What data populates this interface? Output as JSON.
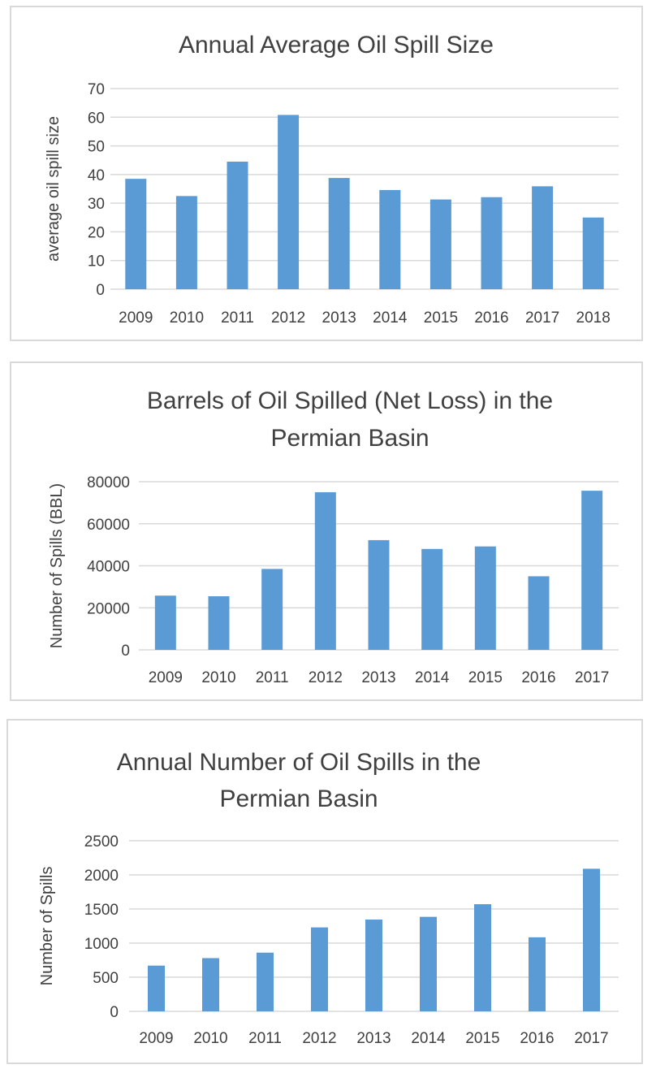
{
  "chart_data": [
    {
      "type": "bar",
      "title": "Annual Average Oil Spill Size",
      "title_lines": [
        "Annual Average Oil Spill Size"
      ],
      "xlabel": "",
      "ylabel": "average oil spill size",
      "categories": [
        "2009",
        "2010",
        "2011",
        "2012",
        "2013",
        "2014",
        "2015",
        "2016",
        "2017",
        "2018"
      ],
      "values": [
        38.5,
        32.5,
        44.5,
        60.8,
        38.8,
        34.6,
        31.3,
        32.1,
        35.9,
        25.0
      ],
      "ylim": [
        0,
        70
      ],
      "yticks": [
        "0",
        "10",
        "20",
        "30",
        "40",
        "50",
        "60",
        "70"
      ],
      "grid": true,
      "legend": "none",
      "bar_color": "#5b9bd5"
    },
    {
      "type": "bar",
      "title": "Barrels of Oil Spilled (Net Loss) in the Permian Basin",
      "title_lines": [
        "Barrels of Oil Spilled (Net Loss) in the",
        "Permian Basin"
      ],
      "xlabel": "",
      "ylabel": "Number of Spills (BBL)",
      "categories": [
        "2009",
        "2010",
        "2011",
        "2012",
        "2013",
        "2014",
        "2015",
        "2016",
        "2017"
      ],
      "values": [
        25800,
        25500,
        38500,
        75000,
        52200,
        48000,
        49200,
        35000,
        75700
      ],
      "ylim": [
        0,
        80000
      ],
      "yticks": [
        "0",
        "20000",
        "40000",
        "60000",
        "80000"
      ],
      "grid": true,
      "legend": "none",
      "bar_color": "#5b9bd5"
    },
    {
      "type": "bar",
      "title": "Annual Number of Oil Spills in the Permian Basin",
      "title_lines": [
        "Annual Number of Oil Spills in the",
        "Permian Basin"
      ],
      "xlabel": "",
      "ylabel": "Number of Spills",
      "categories": [
        "2009",
        "2010",
        "2011",
        "2012",
        "2013",
        "2014",
        "2015",
        "2016",
        "2017"
      ],
      "values": [
        670,
        780,
        860,
        1230,
        1345,
        1385,
        1570,
        1085,
        2090
      ],
      "ylim": [
        0,
        2500
      ],
      "yticks": [
        "0",
        "500",
        "1000",
        "1500",
        "2000",
        "2500"
      ],
      "grid": true,
      "legend": "none",
      "bar_color": "#5b9bd5"
    }
  ]
}
